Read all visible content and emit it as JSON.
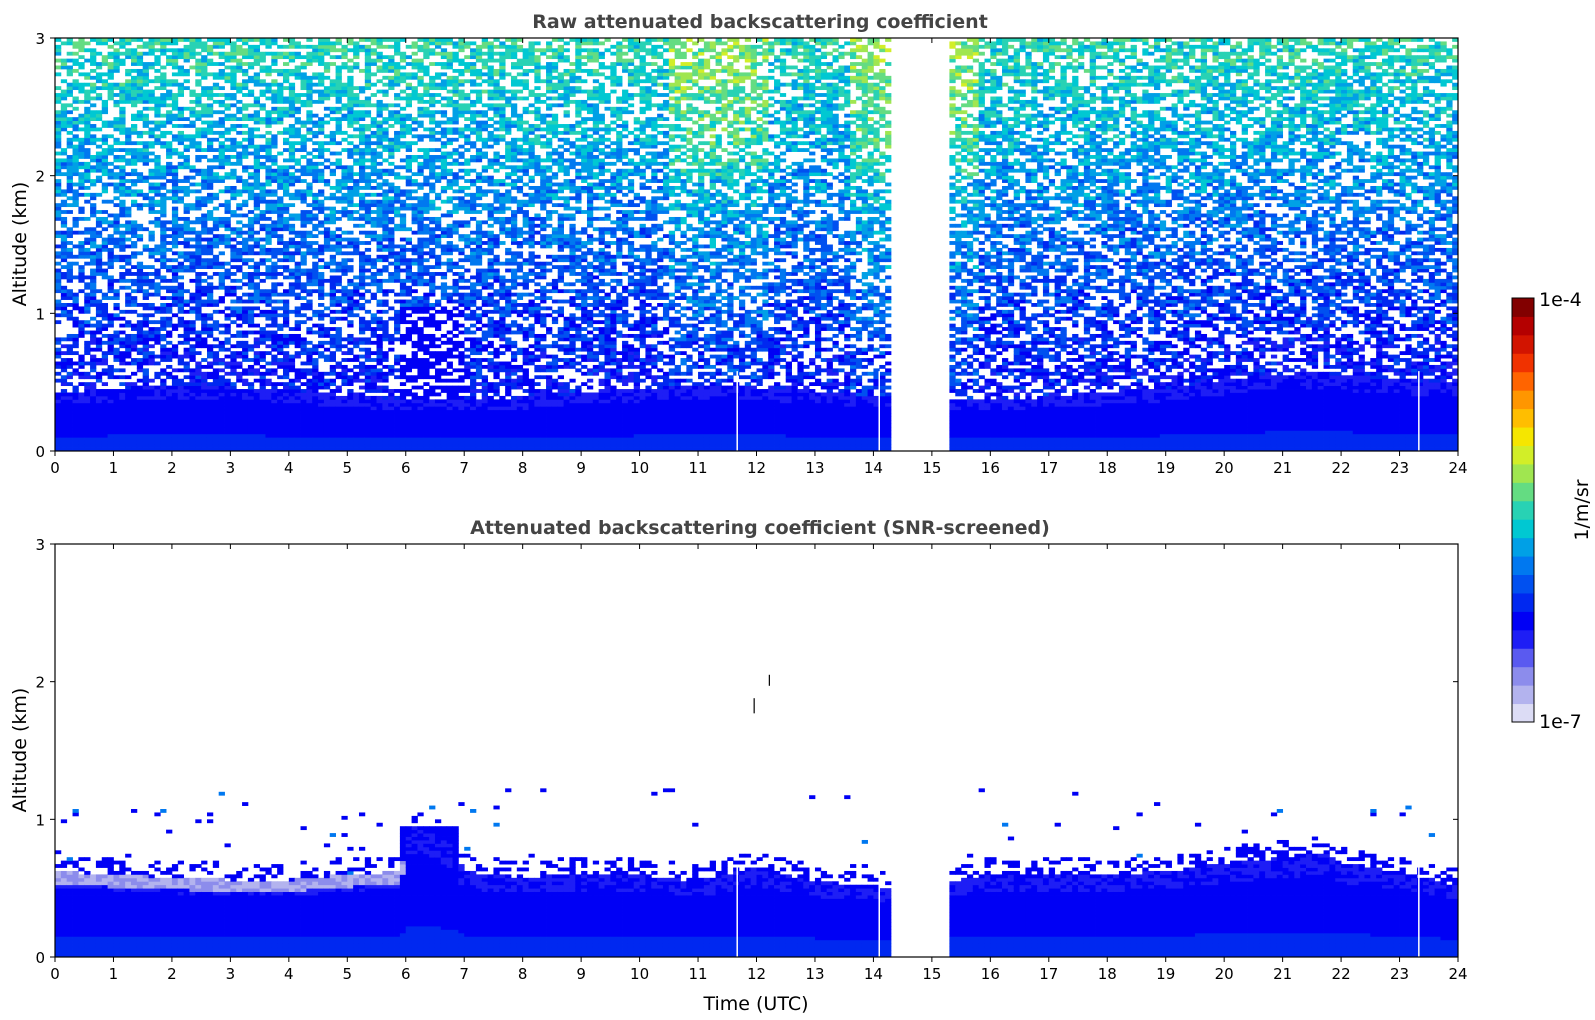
{
  "chart_data": [
    {
      "type": "heatmap",
      "title": "Raw attenuated backscattering coefficient",
      "xlabel": "",
      "ylabel": "Altitude (km)",
      "xlim": [
        0,
        24
      ],
      "ylim": [
        0,
        3
      ],
      "x_ticks": [
        "0",
        "1",
        "2",
        "3",
        "4",
        "5",
        "6",
        "7",
        "8",
        "9",
        "10",
        "11",
        "12",
        "13",
        "14",
        "15",
        "16",
        "17",
        "18",
        "19",
        "20",
        "21",
        "22",
        "23",
        "24"
      ],
      "y_ticks": [
        "0",
        "1",
        "2",
        "3"
      ],
      "data_gap_utc": [
        14.35,
        15.35
      ],
      "missing_profiles_utc": [
        11.67,
        14.1,
        23.33
      ],
      "pattern": "dense blue layer below ~0.4-0.6 km (strongest 0-0.3 km); noisy speckle above increasing toward cyan/green near 3 km; enhanced aerosol blob around 6-7 UTC up to ~1 km; brighter noisy region near 11-12 and 14 UTC aloft"
    },
    {
      "type": "heatmap",
      "title": "Attenuated backscattering coefficient (SNR-screened)",
      "xlabel": "Time (UTC)",
      "ylabel": "Altitude (km)",
      "xlim": [
        0,
        24
      ],
      "ylim": [
        0,
        3
      ],
      "x_ticks": [
        "0",
        "1",
        "2",
        "3",
        "4",
        "5",
        "6",
        "7",
        "8",
        "9",
        "10",
        "11",
        "12",
        "13",
        "14",
        "15",
        "16",
        "17",
        "18",
        "19",
        "20",
        "21",
        "22",
        "23",
        "24"
      ],
      "y_ticks": [
        "0",
        "1",
        "2",
        "3"
      ],
      "data_gap_utc": [
        14.35,
        15.35
      ],
      "missing_profiles_utc": [
        11.67,
        14.1,
        23.33
      ],
      "layer_top_km": {
        "time": [
          0,
          1,
          2,
          3,
          4,
          5,
          5.9,
          6.1,
          6.5,
          6.8,
          7,
          8,
          9,
          10,
          11,
          12,
          13,
          14,
          14.35,
          15.35,
          16,
          17,
          18,
          19,
          20,
          21,
          21.7,
          22,
          23,
          24
        ],
        "top": [
          0.62,
          0.6,
          0.58,
          0.56,
          0.56,
          0.6,
          0.62,
          0.95,
          0.9,
          0.8,
          0.62,
          0.58,
          0.6,
          0.6,
          0.55,
          0.65,
          0.55,
          0.52,
          0.5,
          0.55,
          0.6,
          0.6,
          0.6,
          0.62,
          0.68,
          0.72,
          0.75,
          0.68,
          0.62,
          0.52
        ]
      },
      "pattern": "blue boundary layer below the top line; faint lavender/white haze at upper edge 0-6 UTC; sparse isolated speckles up to ~1.2 km; two short dark streaks near 12 UTC at ~1.8 and ~2.0 km"
    }
  ],
  "colorbar": {
    "label": "1/m/sr",
    "max_label": "1e-4",
    "min_label": "1e-7",
    "colors": [
      "#dcdcf5",
      "#b3b3ee",
      "#8c8cec",
      "#5a5af0",
      "#1e1ef5",
      "#0000f5",
      "#0028f0",
      "#0050f0",
      "#0078f0",
      "#00a0e6",
      "#00c8d2",
      "#28d2b4",
      "#64dc82",
      "#a0e650",
      "#d2ee28",
      "#f5e600",
      "#ffbe00",
      "#ff9600",
      "#ff6400",
      "#f03200",
      "#d21400",
      "#b40000",
      "#820000"
    ]
  }
}
